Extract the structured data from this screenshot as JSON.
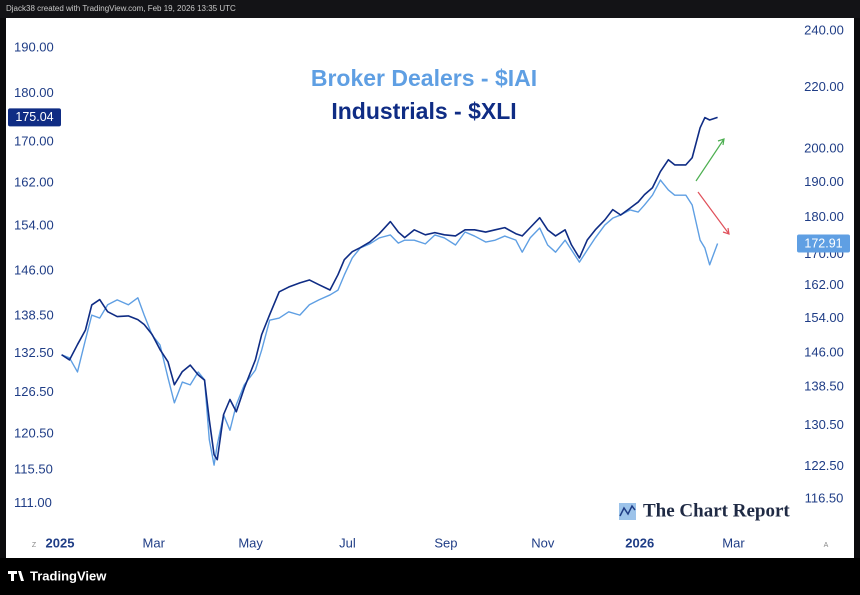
{
  "header": "Djack38 created with TradingView.com, Feb 19, 2026 13:35 UTC",
  "footer": "TradingView",
  "watermark": "The Chart Report",
  "chart_buttons": [
    "Z",
    "A"
  ],
  "chart_data": {
    "type": "line",
    "log_scale": true,
    "x": [
      1,
      6,
      11,
      16,
      20,
      25,
      30,
      36,
      43,
      49,
      53,
      58,
      63,
      68,
      72,
      77,
      82,
      87,
      91,
      94,
      97,
      99,
      103,
      107,
      111,
      116,
      123,
      127,
      132,
      138,
      144,
      151,
      157,
      163,
      170,
      175,
      179,
      184,
      189,
      195,
      201,
      208,
      213,
      217,
      223,
      230,
      236,
      242,
      249,
      255,
      261,
      268,
      274,
      280,
      287,
      291,
      296,
      302,
      307,
      312,
      318,
      322,
      327,
      332,
      337,
      343,
      348,
      353,
      359,
      364,
      368,
      373,
      378,
      383,
      387,
      394,
      398,
      403,
      406,
      409,
      414
    ],
    "xlim": [
      -34,
      464
    ],
    "xticks": [
      {
        "value": 0,
        "label": "2025"
      },
      {
        "value": 59,
        "label": "Mar"
      },
      {
        "value": 120,
        "label": "May"
      },
      {
        "value": 181,
        "label": "Jul"
      },
      {
        "value": 243,
        "label": "Sep"
      },
      {
        "value": 304,
        "label": "Nov"
      },
      {
        "value": 365,
        "label": "2026"
      },
      {
        "value": 424,
        "label": "Mar"
      }
    ],
    "ylim": [
      107.6,
      196.8
    ],
    "yticks": [
      {
        "value": 111,
        "label": "111.00"
      },
      {
        "value": 115.5,
        "label": "115.50"
      },
      {
        "value": 120.5,
        "label": "120.50"
      },
      {
        "value": 126.5,
        "label": "126.50"
      },
      {
        "value": 132.5,
        "label": "132.50"
      },
      {
        "value": 138.5,
        "label": "138.50"
      },
      {
        "value": 146,
        "label": "146.00"
      },
      {
        "value": 154,
        "label": "154.00"
      },
      {
        "value": 162,
        "label": "162.00"
      },
      {
        "value": 170,
        "label": "170.00"
      },
      {
        "value": 180,
        "label": "180.00"
      },
      {
        "value": 190,
        "label": "190.00"
      }
    ],
    "y2lim": [
      111.1,
      244.9
    ],
    "y2ticks": [
      {
        "value": 116.5,
        "label": "116.50"
      },
      {
        "value": 122.5,
        "label": "122.50"
      },
      {
        "value": 130.5,
        "label": "130.50"
      },
      {
        "value": 138.5,
        "label": "138.50"
      },
      {
        "value": 146,
        "label": "146.00"
      },
      {
        "value": 154,
        "label": "154.00"
      },
      {
        "value": 162,
        "label": "162.00"
      },
      {
        "value": 170,
        "label": "170.00"
      },
      {
        "value": 180,
        "label": "180.00"
      },
      {
        "value": 190,
        "label": "190.00"
      },
      {
        "value": 200,
        "label": "200.00"
      },
      {
        "value": 220,
        "label": "220.00"
      },
      {
        "value": 240,
        "label": "240.00"
      }
    ],
    "series": [
      {
        "name": "Broker Dealers - $IAI",
        "color": "#5f9fe3",
        "axis": "y2",
        "values": [
          145.6,
          144.9,
          141.8,
          149.0,
          154.8,
          154.1,
          157.3,
          158.5,
          157.3,
          159.0,
          154.8,
          150.1,
          147.8,
          140.5,
          135.2,
          139.6,
          139.0,
          141.8,
          140.1,
          127.7,
          122.8,
          126.7,
          132.7,
          129.6,
          134.8,
          139.0,
          142.2,
          146.7,
          153.6,
          154.1,
          155.6,
          154.8,
          157.3,
          158.5,
          159.7,
          160.9,
          164.7,
          169.1,
          171.7,
          172.8,
          174.4,
          175.2,
          173.0,
          173.8,
          173.8,
          172.8,
          175.2,
          174.4,
          172.5,
          176.0,
          174.9,
          173.3,
          173.8,
          174.9,
          173.8,
          170.6,
          174.4,
          177.1,
          172.5,
          170.6,
          173.8,
          171.2,
          168.0,
          171.2,
          174.4,
          177.9,
          179.8,
          180.7,
          182.1,
          181.5,
          183.5,
          186.3,
          190.7,
          187.8,
          186.3,
          186.3,
          183.5,
          173.8,
          171.7,
          167.3,
          172.91
        ]
      },
      {
        "name": "Industrials - $XLI",
        "color": "#0f2c84",
        "axis": "y",
        "values": [
          132.3,
          131.5,
          133.9,
          136.2,
          140.3,
          141.2,
          139.2,
          138.4,
          138.5,
          137.9,
          137.1,
          135.5,
          133.1,
          131.2,
          127.7,
          129.7,
          130.7,
          129.2,
          128.4,
          122.5,
          117.6,
          116.9,
          123.3,
          125.5,
          123.7,
          127.2,
          131.5,
          135.5,
          138.7,
          142.5,
          143.3,
          144.0,
          144.5,
          143.7,
          142.8,
          145.4,
          148.0,
          149.4,
          150.1,
          151.1,
          152.6,
          154.8,
          152.9,
          151.9,
          153.3,
          152.4,
          152.8,
          152.4,
          152.2,
          153.3,
          153.3,
          152.9,
          153.3,
          153.7,
          152.6,
          152.2,
          153.7,
          155.5,
          153.3,
          152.2,
          153.3,
          150.6,
          148.3,
          151.5,
          153.3,
          155.1,
          157.0,
          156.0,
          157.3,
          158.4,
          159.8,
          161.1,
          164.2,
          166.5,
          165.5,
          165.5,
          166.9,
          172.9,
          175.0,
          174.5,
          175.04
        ]
      }
    ]
  }
}
